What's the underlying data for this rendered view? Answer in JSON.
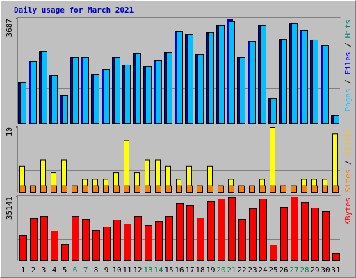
{
  "chart_data": [
    {
      "type": "bar",
      "title": "Daily usage for March 2021",
      "ylim": [
        0,
        3687
      ],
      "yticks": [
        3687
      ],
      "grid": true,
      "ylabel_parts": [
        {
          "text": "Pages",
          "color": "#00c0ff"
        },
        {
          "text": " / ",
          "color": "#000000"
        },
        {
          "text": "Files",
          "color": "#0000ff"
        },
        {
          "text": " / ",
          "color": "#000000"
        },
        {
          "text": "Hits",
          "color": "#008080"
        }
      ],
      "series": [
        {
          "name": "Files",
          "color": "#0000c0",
          "values": [
            1450,
            2188,
            2532,
            1696,
            983,
            2335,
            2335,
            1721,
            1917,
            2335,
            2065,
            2483,
            2016,
            2212,
            2507,
            3245,
            3146,
            2433,
            3220,
            3466,
            3687,
            2335,
            2900,
            3466,
            885,
            2974,
            3540,
            3294,
            2950,
            2753,
            270
          ]
        },
        {
          "name": "Pages",
          "color": "#00c0ff",
          "values": [
            1450,
            2188,
            2532,
            1696,
            983,
            2335,
            2335,
            1721,
            1917,
            2335,
            2065,
            2483,
            2016,
            2212,
            2507,
            3245,
            3146,
            2433,
            3220,
            3466,
            3613,
            2335,
            2900,
            3466,
            885,
            2974,
            3540,
            3294,
            2950,
            2753,
            270
          ]
        }
      ]
    },
    {
      "type": "bar",
      "ylim": [
        0,
        10
      ],
      "yticks": [
        10
      ],
      "grid": true,
      "ylabel_parts": [
        {
          "text": "Sites",
          "color": "#ff8000"
        },
        {
          "text": " / ",
          "color": "#000000"
        },
        {
          "text": "Visits",
          "color": "#ffc000"
        }
      ],
      "series": [
        {
          "name": "Visits",
          "color": "#ffff00",
          "values": [
            4,
            1,
            5,
            3,
            5,
            1,
            2,
            2,
            2,
            3,
            8,
            3,
            5,
            5,
            4,
            2,
            4,
            1,
            4,
            1,
            2,
            1,
            1,
            2,
            10,
            1,
            1,
            2,
            2,
            2,
            9
          ]
        },
        {
          "name": "Sites",
          "color": "#ff8000",
          "values": [
            1,
            1,
            1,
            1,
            1,
            1,
            1,
            1,
            1,
            1,
            1,
            1,
            1,
            1,
            1,
            1,
            1,
            1,
            1,
            1,
            1,
            1,
            1,
            1,
            1,
            1,
            1,
            1,
            1,
            1,
            1
          ]
        }
      ]
    },
    {
      "type": "bar",
      "ylim": [
        0,
        35141
      ],
      "yticks": [
        35141
      ],
      "grid": true,
      "ylabel_parts": [
        {
          "text": "KBytes",
          "color": "#ff0000"
        }
      ],
      "categories": [
        "1",
        "2",
        "3",
        "4",
        "5",
        "6",
        "7",
        "8",
        "9",
        "10",
        "11",
        "12",
        "13",
        "14",
        "15",
        "16",
        "17",
        "18",
        "19",
        "20",
        "21",
        "22",
        "23",
        "24",
        "25",
        "26",
        "27",
        "28",
        "29",
        "30",
        "31"
      ],
      "category_colors": [
        "#000000",
        "#000000",
        "#000000",
        "#000000",
        "#000000",
        "#008040",
        "#008040",
        "#000000",
        "#000000",
        "#000000",
        "#000000",
        "#000000",
        "#008040",
        "#008040",
        "#000000",
        "#000000",
        "#000000",
        "#000000",
        "#000000",
        "#008040",
        "#008040",
        "#000000",
        "#000000",
        "#000000",
        "#000000",
        "#000000",
        "#008040",
        "#008040",
        "#000000",
        "#000000",
        "#000000"
      ],
      "series": [
        {
          "name": "KBytes",
          "color": "#ff0000",
          "values": [
            13902,
            23170,
            24328,
            16219,
            8882,
            24328,
            22784,
            16605,
            18536,
            22397,
            20080,
            24328,
            19308,
            21625,
            24328,
            31665,
            30507,
            23556,
            32824,
            33983,
            34755,
            22784,
            28576,
            33983,
            8496,
            29349,
            35141,
            32052,
            28962,
            27031,
            3862
          ]
        }
      ]
    }
  ]
}
